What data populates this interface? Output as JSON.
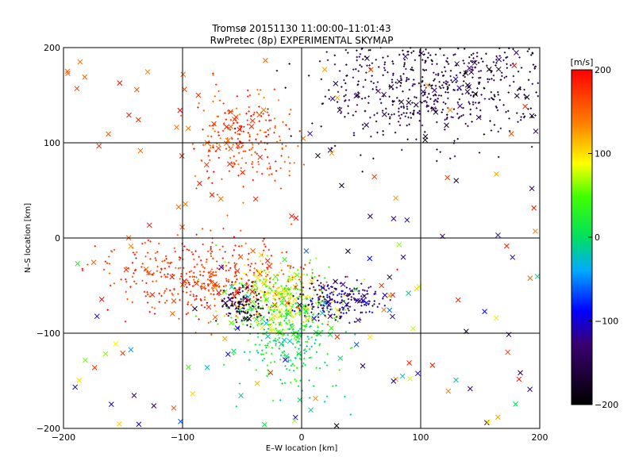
{
  "chart_data": {
    "type": "scatter",
    "title_line1": "Tromsø 20151130 11:00:00–11:01:43",
    "title_line2": "RwPretec (8p) EXPERIMENTAL SKYMAP",
    "xlabel": "E–W location [km]",
    "ylabel": "N–S location [km]",
    "xlim": [
      -200,
      200
    ],
    "ylim": [
      -200,
      200
    ],
    "xticks": [
      -200,
      -100,
      0,
      100,
      200
    ],
    "yticks": [
      -200,
      -100,
      0,
      100,
      200
    ],
    "grid": true,
    "colorbar": {
      "label": "[m/s]",
      "min": -200,
      "max": 200,
      "ticks": [
        200,
        100,
        0,
        -100,
        -200
      ],
      "colormap": "rainbow (black → blue → cyan → green → yellow → red)"
    },
    "markers": {
      "dots": "small plus marks",
      "crosses": "x marks"
    },
    "clusters": [
      {
        "region": "north-west",
        "x_center": -50,
        "y_center": 105,
        "spread_x": 20,
        "spread_y": 25,
        "count": 240,
        "velocity_range": [
          140,
          200
        ]
      },
      {
        "region": "north-east",
        "x_center": 110,
        "y_center": 160,
        "spread_x": 50,
        "spread_y": 30,
        "count": 420,
        "velocity_range": [
          -200,
          -150
        ]
      },
      {
        "region": "south-west",
        "x_center": -80,
        "y_center": -40,
        "spread_x": 45,
        "spread_y": 20,
        "count": 430,
        "velocity_range": [
          150,
          200
        ]
      },
      {
        "region": "south-center",
        "x_center": -20,
        "y_center": -65,
        "spread_x": 22,
        "spread_y": 18,
        "count": 380,
        "velocity_range": [
          20,
          110
        ]
      },
      {
        "region": "south-center-low",
        "x_center": -10,
        "y_center": -110,
        "spread_x": 20,
        "spread_y": 25,
        "count": 260,
        "velocity_range": [
          -30,
          40
        ]
      },
      {
        "region": "south-east",
        "x_center": 30,
        "y_center": -65,
        "spread_x": 18,
        "spread_y": 10,
        "count": 200,
        "velocity_range": [
          -180,
          -90
        ]
      },
      {
        "region": "dark-core",
        "x_center": -50,
        "y_center": -70,
        "spread_x": 10,
        "spread_y": 10,
        "count": 120,
        "velocity_range": [
          -200,
          -140
        ]
      }
    ],
    "scattered_crosses": {
      "count": 170,
      "velocity_range": [
        -200,
        200
      ]
    }
  }
}
